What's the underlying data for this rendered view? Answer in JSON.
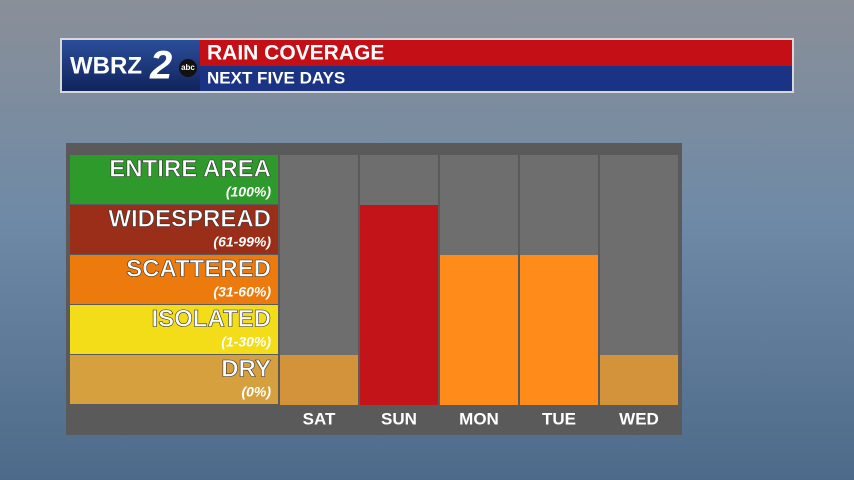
{
  "logo": {
    "text": "WBRZ",
    "number": "2",
    "network": "abc"
  },
  "chart_data": {
    "type": "bar",
    "title": "RAIN COVERAGE",
    "subtitle": "NEXT FIVE DAYS",
    "categories": [
      "SAT",
      "SUN",
      "MON",
      "TUE",
      "WED"
    ],
    "values": [
      1,
      4,
      3,
      3,
      1
    ],
    "colors": [
      "#d3933a",
      "#c3141a",
      "#ff8c1a",
      "#ff8c1a",
      "#d3933a"
    ],
    "ylim": [
      0,
      5
    ],
    "levels": [
      {
        "label": "DRY",
        "range": "(0%)",
        "color": "#d6a03e"
      },
      {
        "label": "ISOLATED",
        "range": "(1-30%)",
        "color": "#f3dc18"
      },
      {
        "label": "SCATTERED",
        "range": "(31-60%)",
        "color": "#ec7a0c"
      },
      {
        "label": "WIDESPREAD",
        "range": "(61-99%)",
        "color": "#9b2e18"
      },
      {
        "label": "ENTIRE AREA",
        "range": "(100%)",
        "color": "#2f9a2c"
      }
    ]
  }
}
